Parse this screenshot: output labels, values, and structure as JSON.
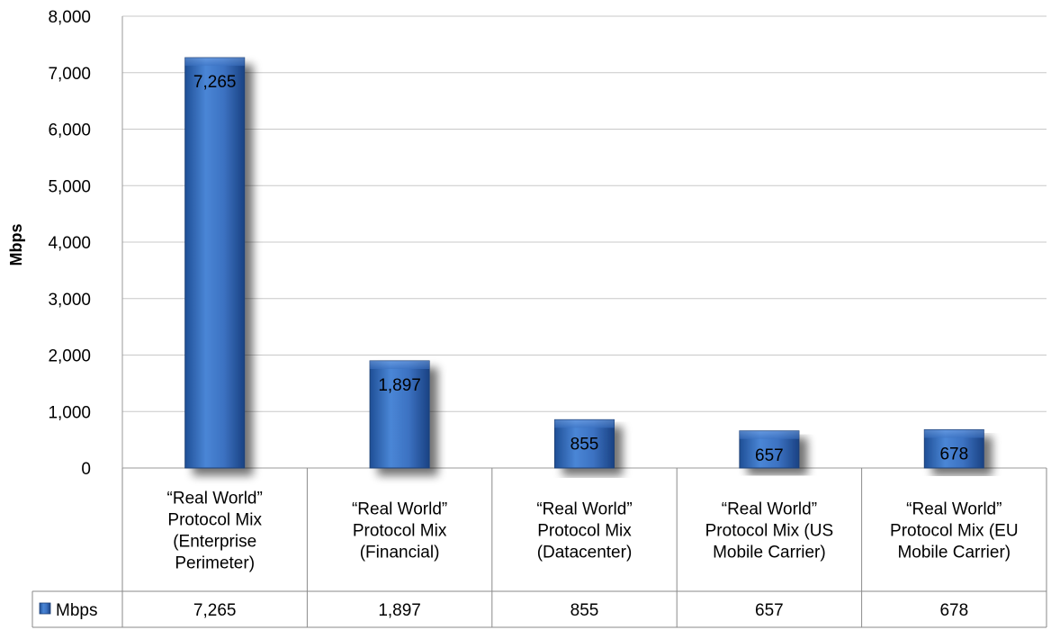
{
  "chart_data": {
    "type": "bar",
    "ylabel": "Mbps",
    "ylim": [
      0,
      8000
    ],
    "yticks": [
      "0",
      "1,000",
      "2,000",
      "3,000",
      "4,000",
      "5,000",
      "6,000",
      "7,000",
      "8,000"
    ],
    "grid": true,
    "categories": [
      [
        "“Real World”",
        "Protocol Mix",
        "(Enterprise",
        "Perimeter)"
      ],
      [
        "“Real World”",
        "Protocol Mix",
        "(Financial)"
      ],
      [
        "“Real World”",
        "Protocol Mix",
        "(Datacenter)"
      ],
      [
        "“Real World”",
        "Protocol Mix (US",
        "Mobile Carrier)"
      ],
      [
        "“Real World”",
        "Protocol Mix (EU",
        "Mobile Carrier)"
      ]
    ],
    "series": [
      {
        "name": "Mbps",
        "values": [
          7265,
          1897,
          855,
          657,
          678
        ],
        "labels": [
          "7,265",
          "1,897",
          "855",
          "657",
          "678"
        ],
        "color": "#3d72c2"
      }
    ],
    "data_table": true
  }
}
